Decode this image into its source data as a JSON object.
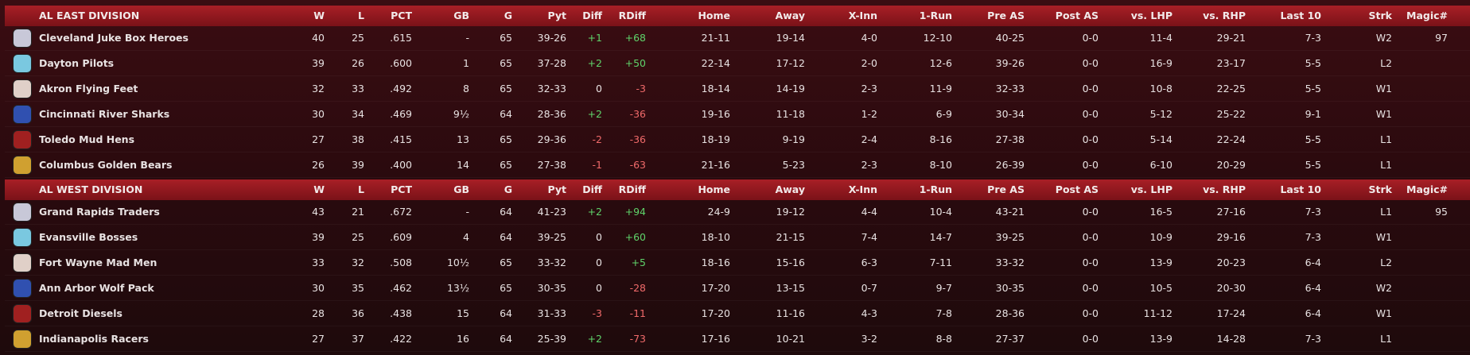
{
  "divisions": [
    {
      "name": "AL EAST DIVISION",
      "columns": [
        "W",
        "L",
        "PCT",
        "GB",
        "G",
        "Pyt",
        "Diff",
        "RDiff",
        "Home",
        "Away",
        "X-Inn",
        "1-Run",
        "Pre AS",
        "Post AS",
        "vs. LHP",
        "vs. RHP",
        "Last 10",
        "Strk",
        "Magic#"
      ],
      "teams": [
        {
          "name": "Cleveland Juke Box Heroes",
          "values": [
            "40",
            "25",
            ".615",
            "-",
            "65",
            "39-26",
            "+1",
            "+68",
            "21-11",
            "19-14",
            "4-0",
            "12-10",
            "40-25",
            "0-0",
            "11-4",
            "29-21",
            "7-3",
            "W2",
            "97"
          ]
        },
        {
          "name": "Dayton Pilots",
          "values": [
            "39",
            "26",
            ".600",
            "1",
            "65",
            "37-28",
            "+2",
            "+50",
            "22-14",
            "17-12",
            "2-0",
            "12-6",
            "39-26",
            "0-0",
            "16-9",
            "23-17",
            "5-5",
            "L2"
          ]
        },
        {
          "name": "Akron  Flying Feet",
          "values": [
            "32",
            "33",
            ".492",
            "8",
            "65",
            "32-33",
            "0",
            "-3",
            "18-14",
            "14-19",
            "2-3",
            "11-9",
            "32-33",
            "0-0",
            "10-8",
            "22-25",
            "5-5",
            "W1"
          ]
        },
        {
          "name": "Cincinnati River Sharks",
          "values": [
            "30",
            "34",
            ".469",
            "9½",
            "64",
            "28-36",
            "+2",
            "-36",
            "19-16",
            "11-18",
            "1-2",
            "6-9",
            "30-34",
            "0-0",
            "5-12",
            "25-22",
            "9-1",
            "W1"
          ]
        },
        {
          "name": "Toledo  Mud Hens",
          "values": [
            "27",
            "38",
            ".415",
            "13",
            "65",
            "29-36",
            "-2",
            "-36",
            "18-19",
            "9-19",
            "2-4",
            "8-16",
            "27-38",
            "0-0",
            "5-14",
            "22-24",
            "5-5",
            "L1"
          ]
        },
        {
          "name": "Columbus Golden Bears",
          "values": [
            "26",
            "39",
            ".400",
            "14",
            "65",
            "27-38",
            "-1",
            "-63",
            "21-16",
            "5-23",
            "2-3",
            "8-10",
            "26-39",
            "0-0",
            "6-10",
            "20-29",
            "5-5",
            "L1"
          ]
        }
      ]
    },
    {
      "name": "AL WEST DIVISION",
      "columns": [
        "W",
        "L",
        "PCT",
        "GB",
        "G",
        "Pyt",
        "Diff",
        "RDiff",
        "Home",
        "Away",
        "X-Inn",
        "1-Run",
        "Pre AS",
        "Post AS",
        "vs. LHP",
        "vs. RHP",
        "Last 10",
        "Strk",
        "Magic#"
      ],
      "teams": [
        {
          "name": "Grand Rapids Traders",
          "values": [
            "43",
            "21",
            ".672",
            "-",
            "64",
            "41-23",
            "+2",
            "+94",
            "24-9",
            "19-12",
            "4-4",
            "10-4",
            "43-21",
            "0-0",
            "16-5",
            "27-16",
            "7-3",
            "L1",
            "95"
          ]
        },
        {
          "name": "Evansville Bosses",
          "values": [
            "39",
            "25",
            ".609",
            "4",
            "64",
            "39-25",
            "0",
            "+60",
            "18-10",
            "21-15",
            "7-4",
            "14-7",
            "39-25",
            "0-0",
            "10-9",
            "29-16",
            "7-3",
            "W1"
          ]
        },
        {
          "name": "Fort Wayne Mad Men",
          "values": [
            "33",
            "32",
            ".508",
            "10½",
            "65",
            "33-32",
            "0",
            "+5",
            "18-16",
            "15-16",
            "6-3",
            "7-11",
            "33-32",
            "0-0",
            "13-9",
            "20-23",
            "6-4",
            "L2"
          ]
        },
        {
          "name": "Ann Arbor Wolf Pack",
          "values": [
            "30",
            "35",
            ".462",
            "13½",
            "65",
            "30-35",
            "0",
            "-28",
            "17-20",
            "13-15",
            "0-7",
            "9-7",
            "30-35",
            "0-0",
            "10-5",
            "20-30",
            "6-4",
            "W2"
          ]
        },
        {
          "name": "Detroit Diesels",
          "values": [
            "28",
            "36",
            ".438",
            "15",
            "64",
            "31-33",
            "-3",
            "-11",
            "17-20",
            "11-16",
            "4-3",
            "7-8",
            "28-36",
            "0-0",
            "11-12",
            "17-24",
            "6-4",
            "W1"
          ]
        },
        {
          "name": "Indianapolis Racers",
          "values": [
            "27",
            "37",
            ".422",
            "16",
            "64",
            "25-39",
            "+2",
            "-73",
            "17-16",
            "10-21",
            "3-2",
            "8-8",
            "27-37",
            "0-0",
            "13-9",
            "14-28",
            "7-3",
            "L1"
          ]
        }
      ]
    }
  ]
}
